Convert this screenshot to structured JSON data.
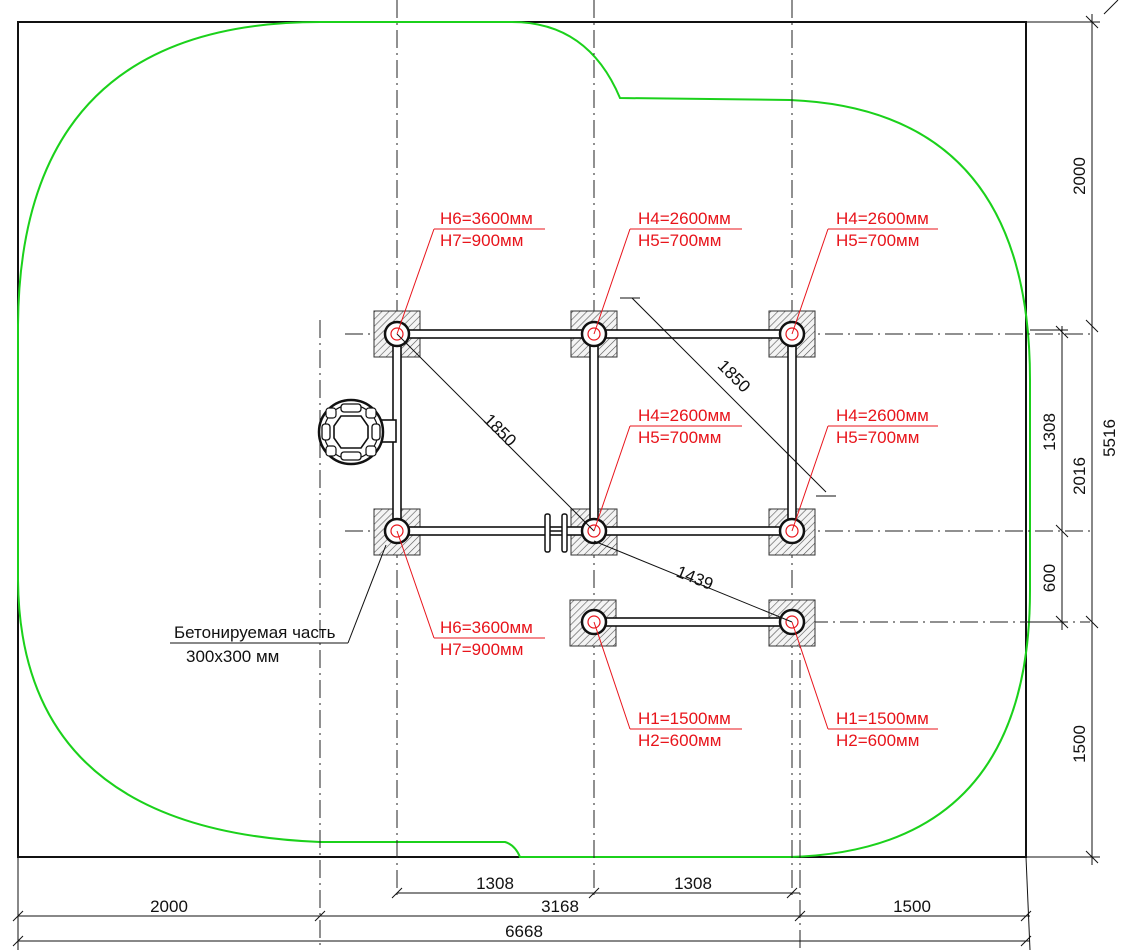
{
  "post_labels": [
    {
      "h_top": "H6=3600мм",
      "h_bottom": "H7=900мм"
    },
    {
      "h_top": "H4=2600мм",
      "h_bottom": "H5=700мм"
    },
    {
      "h_top": "H4=2600мм",
      "h_bottom": "H5=700мм"
    },
    {
      "h_top": "H4=2600мм",
      "h_bottom": "H5=700мм"
    },
    {
      "h_top": "H4=2600мм",
      "h_bottom": "H5=700мм"
    },
    {
      "h_top": "H6=3600мм",
      "h_bottom": "H7=900мм"
    },
    {
      "h_top": "H1=1500мм",
      "h_bottom": "H2=600мм"
    },
    {
      "h_top": "H1=1500мм",
      "h_bottom": "H2=600мм"
    }
  ],
  "concrete_note": {
    "line1": "Бетонируемая часть",
    "line2": "300x300 мм"
  },
  "diagonal_dims": [
    "1850",
    "1850",
    "1439"
  ],
  "right_dims": {
    "d2000": "2000",
    "d1308": "1308",
    "d2016": "2016",
    "d5516": "5516",
    "d600": "600",
    "d1500": "1500"
  },
  "bottom_dims": {
    "d1308_left": "1308",
    "d1308_right": "1308",
    "d2000": "2000",
    "d3168": "3168",
    "d1500": "1500",
    "d6668": "6668"
  },
  "colors": {
    "zone": "#1bd11b",
    "labels": "#e8141b",
    "lines": "#111111"
  }
}
